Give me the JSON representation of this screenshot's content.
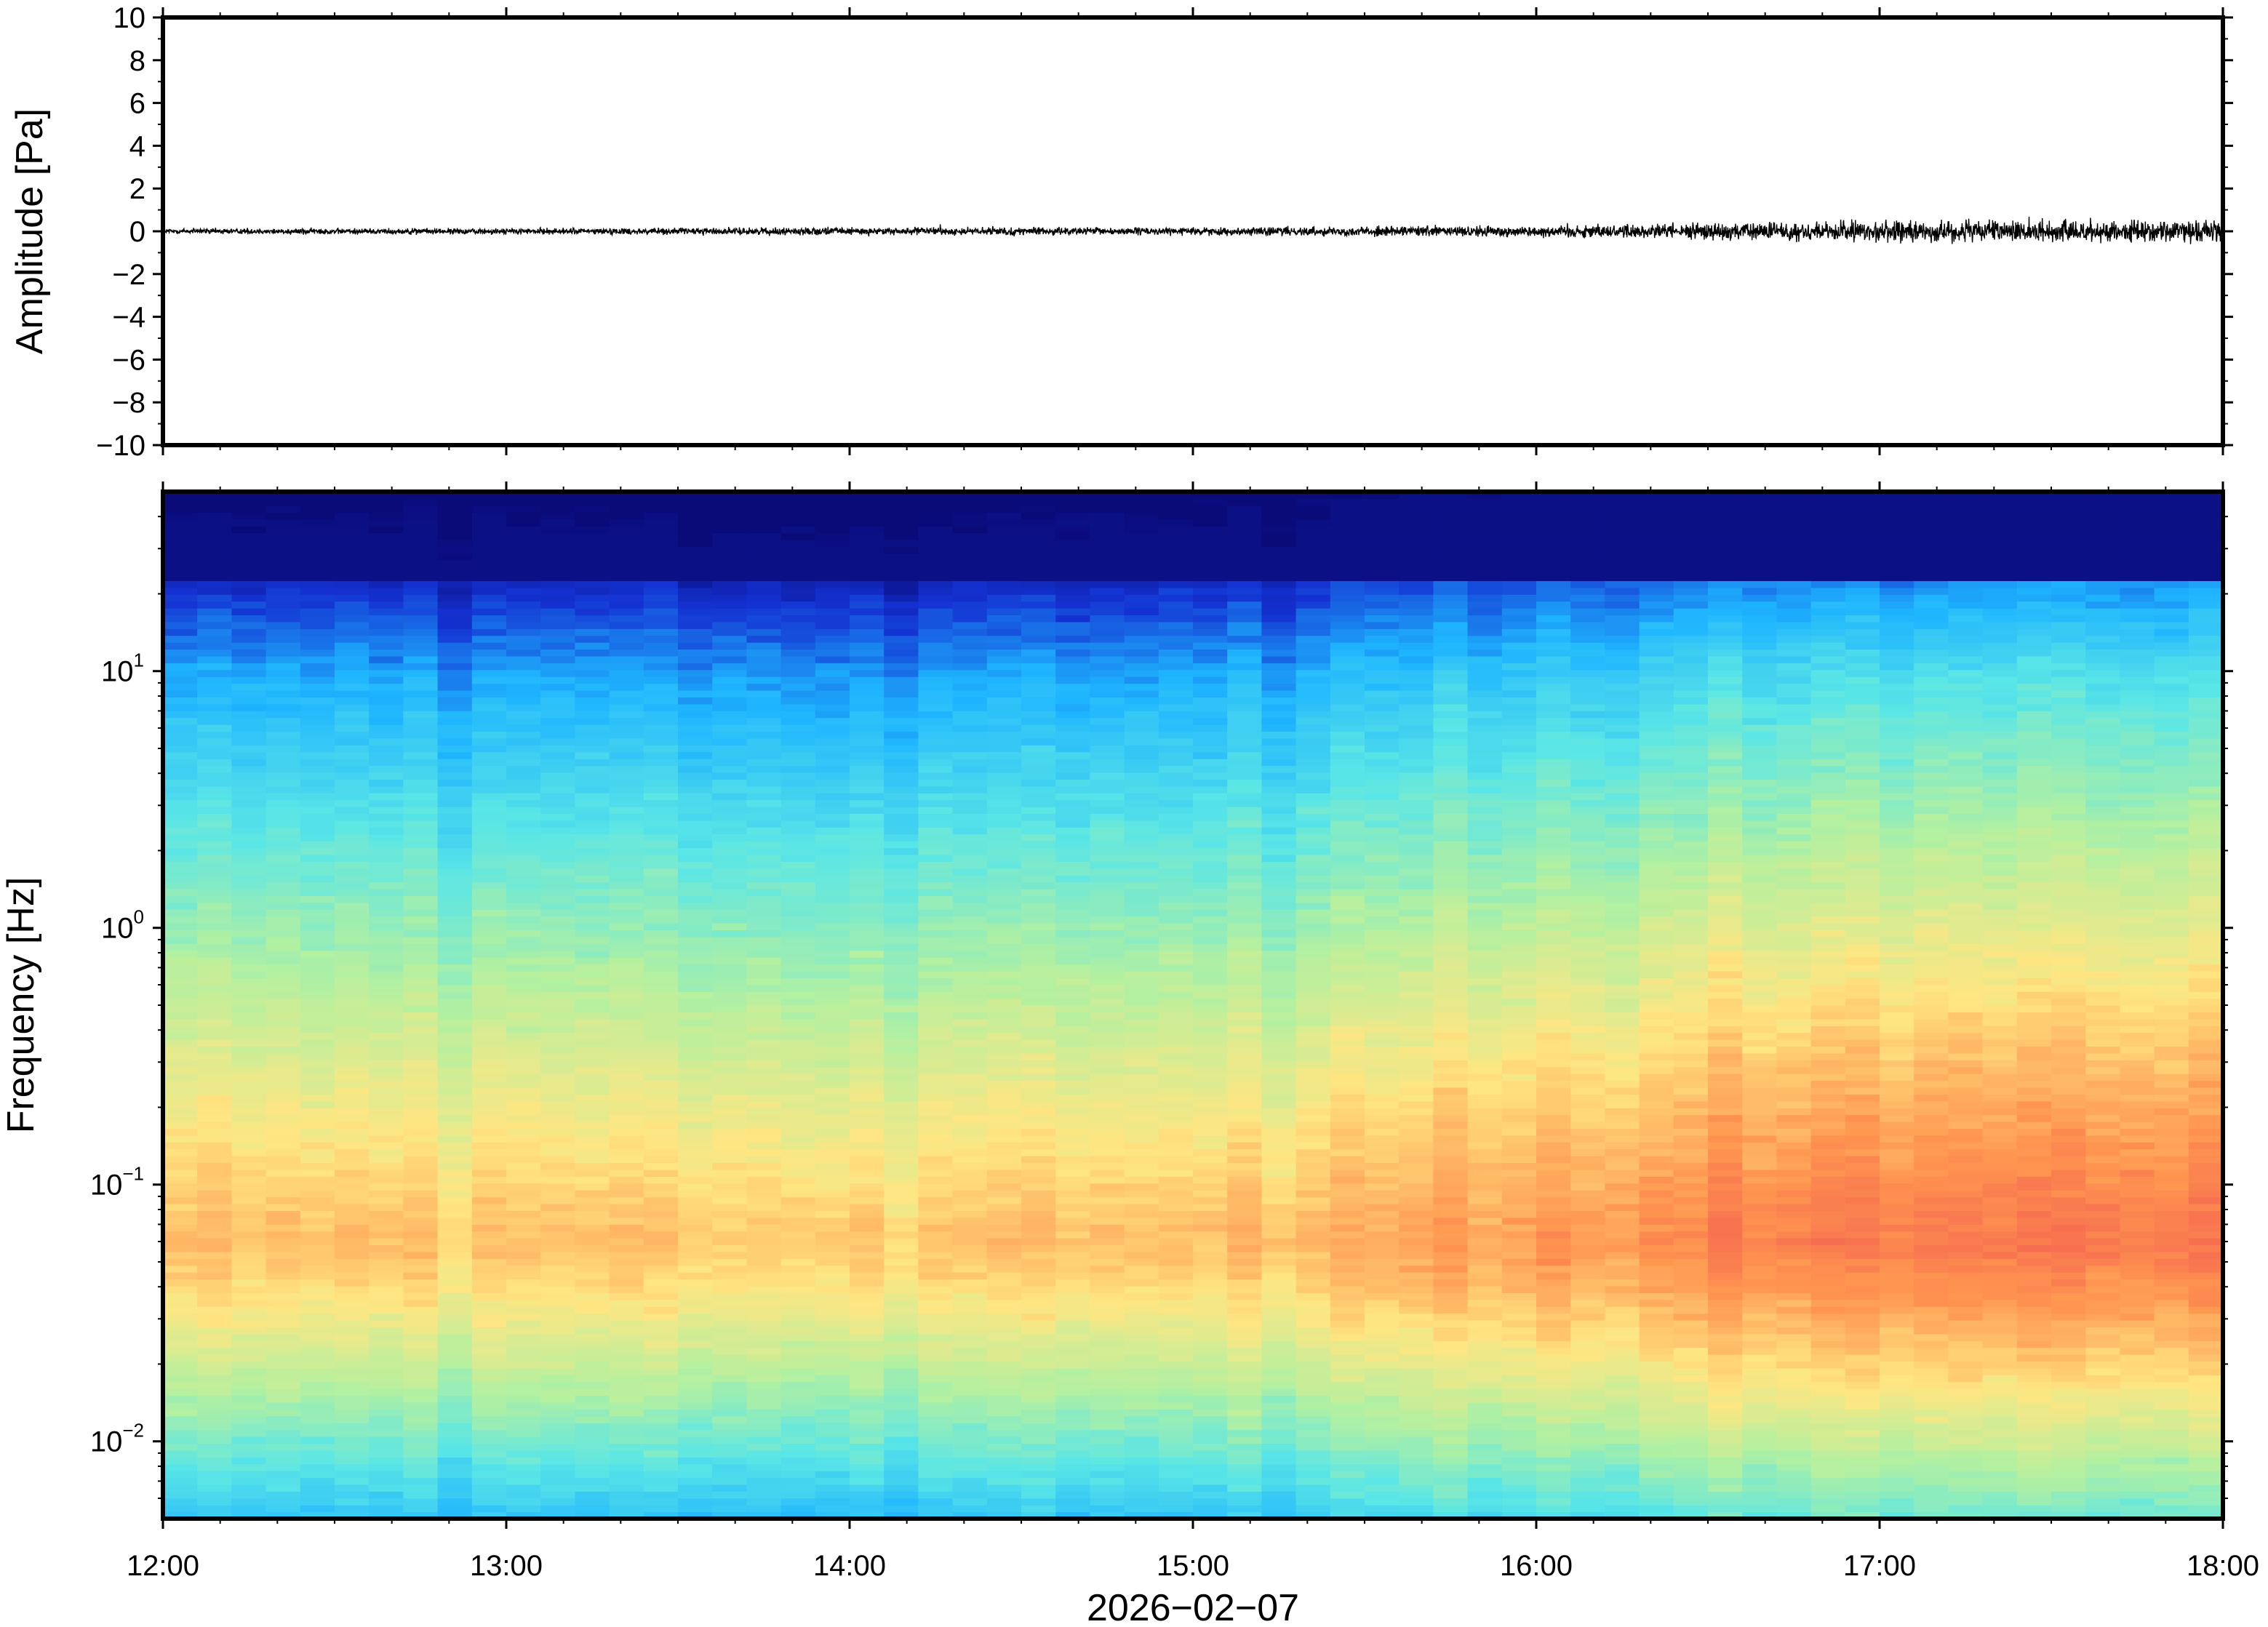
{
  "chart_data": [
    {
      "type": "line",
      "ylabel": "Amplitude [Pa]",
      "ylim": [
        -10,
        10
      ],
      "y_ticks": [
        10,
        8,
        6,
        4,
        2,
        0,
        -2,
        -4,
        -6,
        -8,
        -10
      ],
      "y_tick_labels": [
        "10",
        "8",
        "6",
        "4",
        "2",
        "0",
        "−2",
        "−4",
        "−6",
        "−8",
        "−10"
      ],
      "xlim": [
        "2026-02-07 12:00",
        "2026-02-07 18:00"
      ],
      "series": [
        {
          "color": "#000000",
          "hourly_amplitude_envelope_pa": [
            {
              "t": "12:00",
              "a": 0.2
            },
            {
              "t": "13:00",
              "a": 0.2
            },
            {
              "t": "14:00",
              "a": 0.25
            },
            {
              "t": "15:00",
              "a": 0.25
            },
            {
              "t": "16:00",
              "a": 0.4
            },
            {
              "t": "17:00",
              "a": 0.7
            },
            {
              "t": "18:00",
              "a": 0.7
            }
          ]
        }
      ]
    },
    {
      "type": "heatmap",
      "ylabel": "Frequency [Hz]",
      "y_scale": "log",
      "ylim": [
        0.005,
        50
      ],
      "y_ticks": [
        {
          "value": 10,
          "base": "10",
          "exp": "1"
        },
        {
          "value": 1,
          "base": "10",
          "exp": "0"
        },
        {
          "value": 0.1,
          "base": "10",
          "exp": "−1"
        },
        {
          "value": 0.01,
          "base": "10",
          "exp": "−2"
        }
      ],
      "xlim": [
        "2026-02-07 12:00",
        "2026-02-07 18:00"
      ],
      "x_ticks": [
        "12:00",
        "13:00",
        "14:00",
        "15:00",
        "16:00",
        "17:00",
        "18:00"
      ],
      "xlabel": "2026−02−07",
      "colormap": "jet",
      "colormap_stops": [
        "#0a0a78",
        "#1432d2",
        "#1eb4ff",
        "#5ae6e6",
        "#b4f0a0",
        "#ffe682",
        "#ff9650",
        "#f05050"
      ],
      "time_bins_per_hour": 10,
      "peak_frequency_hz": 0.06,
      "peak_intensity_by_hour": [
        {
          "t": "12:00",
          "i": 0.78
        },
        {
          "t": "13:00",
          "i": 0.78
        },
        {
          "t": "14:00",
          "i": 0.76
        },
        {
          "t": "15:00",
          "i": 0.79
        },
        {
          "t": "16:00",
          "i": 0.84
        },
        {
          "t": "17:00",
          "i": 0.92
        },
        {
          "t": "18:00",
          "i": 0.93
        }
      ]
    }
  ]
}
